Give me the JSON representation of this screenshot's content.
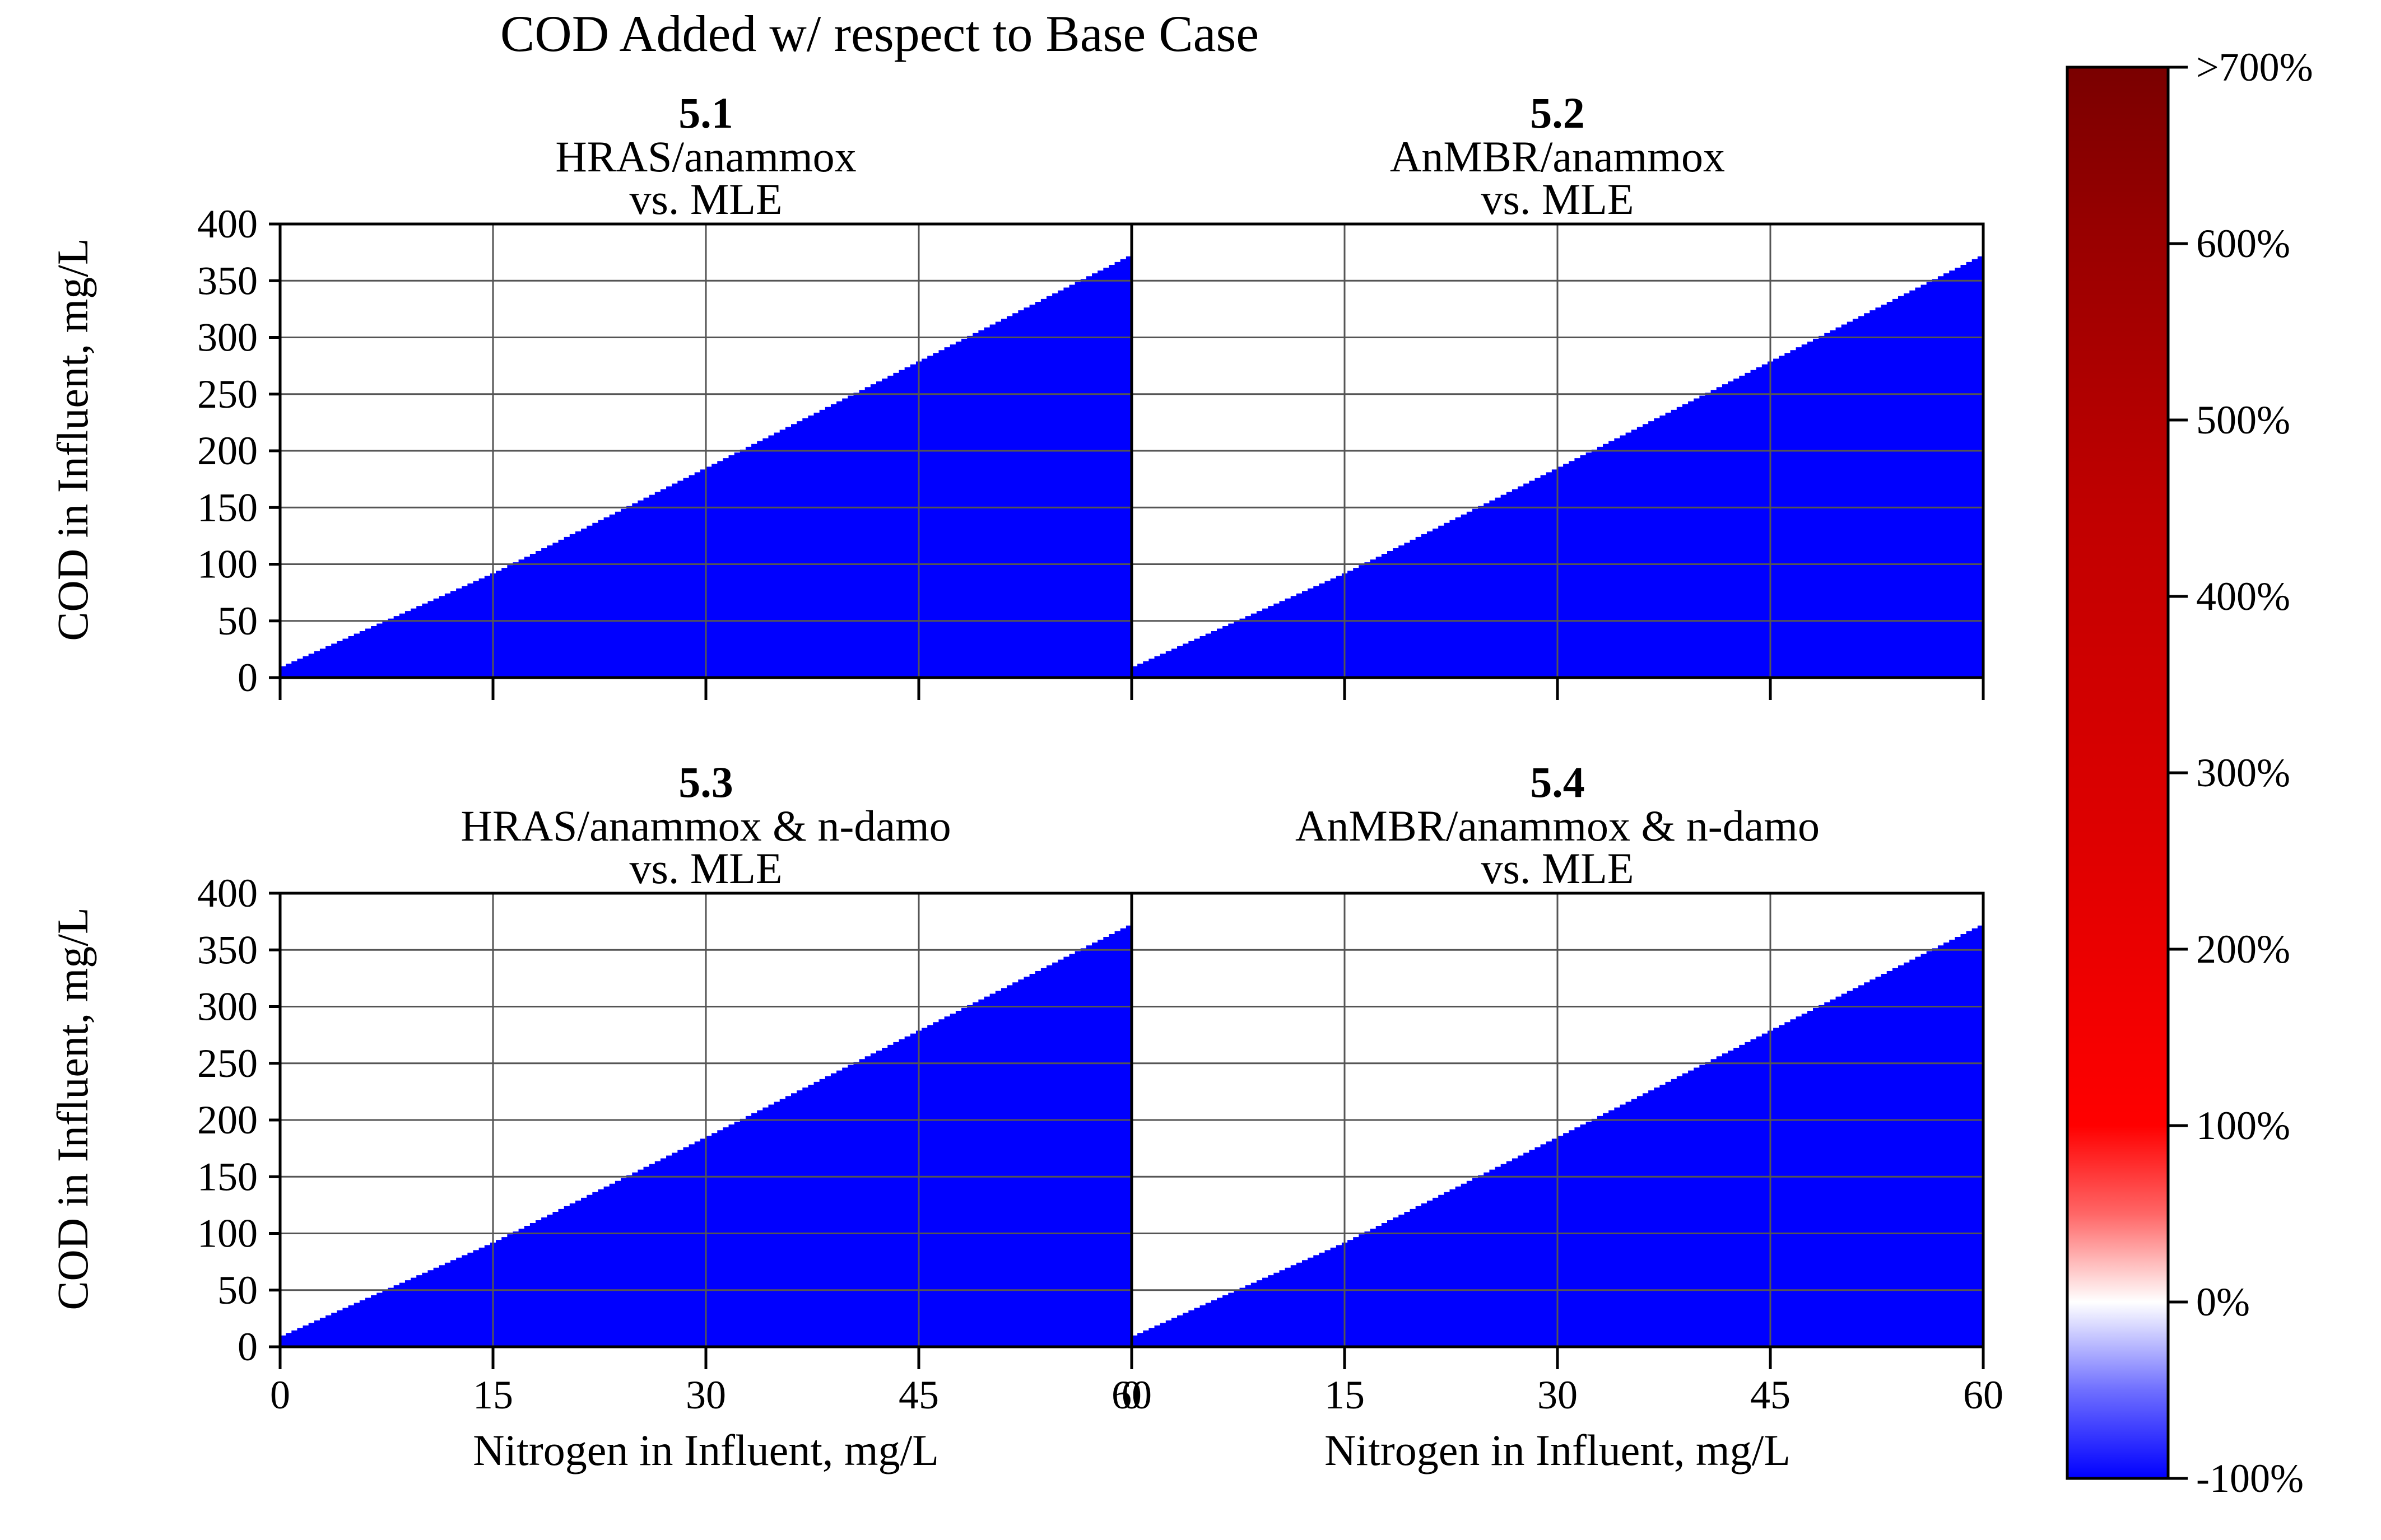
{
  "title": "COD Added w/ respect to Base Case",
  "colors": {
    "negative": "#0000ff",
    "zero": "#ffffff",
    "positive_high": "#7a0000",
    "grid": "#555555"
  },
  "colorbar": {
    "ticks": [
      "-100%",
      "0%",
      "100%",
      "200%",
      "300%",
      "400%",
      "500%",
      "600%",
      ">700%"
    ],
    "values": [
      -100,
      0,
      100,
      200,
      300,
      400,
      500,
      600,
      700
    ],
    "stops": [
      {
        "value": -100,
        "color": "#0000ff"
      },
      {
        "value": -50,
        "color": "#6f6fff"
      },
      {
        "value": 0,
        "color": "#ffffff"
      },
      {
        "value": 50,
        "color": "#ff6666"
      },
      {
        "value": 100,
        "color": "#ff0000"
      },
      {
        "value": 250,
        "color": "#e00000"
      },
      {
        "value": 450,
        "color": "#c00000"
      },
      {
        "value": 600,
        "color": "#9a0000"
      },
      {
        "value": 700,
        "color": "#7a0000"
      }
    ]
  },
  "chart_data": [
    {
      "type": "heatmap",
      "panel": "5.1",
      "subtitle_line1": "HRAS/anammox",
      "subtitle_line2": "vs. MLE",
      "xlabel": "",
      "ylabel": "COD in Influent, mg/L",
      "xlim": [
        0,
        60
      ],
      "ylim": [
        0,
        400
      ],
      "xticks": [
        0,
        15,
        30,
        45,
        60
      ],
      "yticks": [
        0,
        50,
        100,
        150,
        200,
        250,
        300,
        350,
        400
      ],
      "x_tick_labels_shown": false,
      "region": {
        "description": "values below boundary",
        "value": -100,
        "boundary_x": [
          0,
          15,
          30,
          45,
          60
        ],
        "boundary_y": [
          10,
          93,
          186,
          280,
          374
        ]
      },
      "grid": true
    },
    {
      "type": "heatmap",
      "panel": "5.2",
      "subtitle_line1": "AnMBR/anammox",
      "subtitle_line2": "vs. MLE",
      "xlabel": "",
      "ylabel": "",
      "xlim": [
        0,
        60
      ],
      "ylim": [
        0,
        400
      ],
      "xticks": [
        0,
        15,
        30,
        45,
        60
      ],
      "yticks": [
        0,
        50,
        100,
        150,
        200,
        250,
        300,
        350,
        400
      ],
      "x_tick_labels_shown": false,
      "region": {
        "description": "values below boundary",
        "value": -100,
        "boundary_x": [
          0,
          15,
          30,
          45,
          60
        ],
        "boundary_y": [
          10,
          93,
          186,
          280,
          374
        ]
      },
      "grid": true
    },
    {
      "type": "heatmap",
      "panel": "5.3",
      "subtitle_line1": "HRAS/anammox & n-damo",
      "subtitle_line2": "vs. MLE",
      "xlabel": "Nitrogen in Influent, mg/L",
      "ylabel": "COD in Influent, mg/L",
      "xlim": [
        0,
        60
      ],
      "ylim": [
        0,
        400
      ],
      "xticks": [
        0,
        15,
        30,
        45,
        60
      ],
      "yticks": [
        0,
        50,
        100,
        150,
        200,
        250,
        300,
        350,
        400
      ],
      "x_tick_labels_shown": true,
      "region": {
        "description": "values below boundary",
        "value": -100,
        "boundary_x": [
          0,
          15,
          30,
          45,
          60
        ],
        "boundary_y": [
          10,
          93,
          186,
          280,
          374
        ]
      },
      "grid": true
    },
    {
      "type": "heatmap",
      "panel": "5.4",
      "subtitle_line1": "AnMBR/anammox & n-damo",
      "subtitle_line2": "vs. MLE",
      "xlabel": "Nitrogen in Influent, mg/L",
      "ylabel": "",
      "xlim": [
        0,
        60
      ],
      "ylim": [
        0,
        400
      ],
      "xticks": [
        0,
        15,
        30,
        45,
        60
      ],
      "yticks": [
        0,
        50,
        100,
        150,
        200,
        250,
        300,
        350,
        400
      ],
      "x_tick_labels_shown": true,
      "region": {
        "description": "values below boundary",
        "value": -100,
        "boundary_x": [
          0,
          15,
          30,
          45,
          60
        ],
        "boundary_y": [
          10,
          93,
          186,
          280,
          374
        ]
      },
      "grid": true
    }
  ]
}
